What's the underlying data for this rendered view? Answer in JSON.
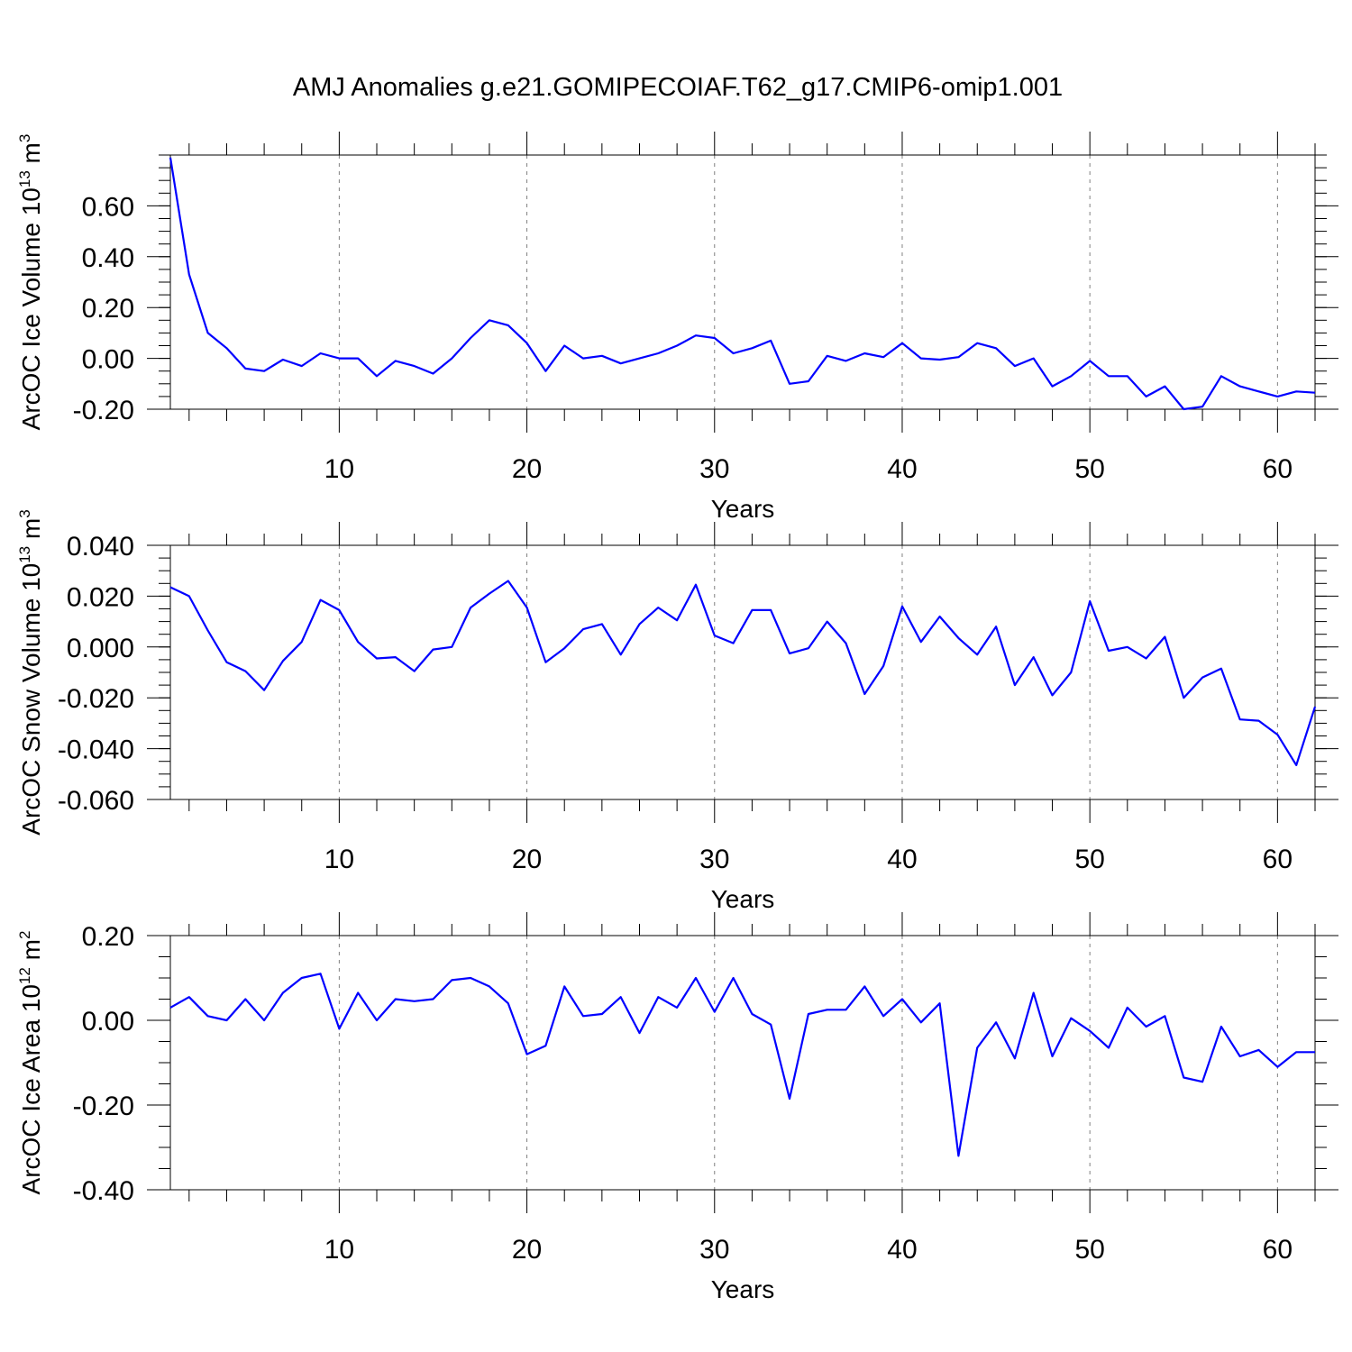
{
  "title": "AMJ Anomalies g.e21.GOMIPECOIAF.T62_g17.CMIP6-omip1.001",
  "colors": {
    "line": "#0000ff",
    "axis": "#000000",
    "grid": "#808080"
  },
  "chart_data": [
    {
      "type": "line",
      "xlabel": "Years",
      "ylabel": {
        "text": "ArcOC Ice Volume 10",
        "exp": "13",
        "unit": " m",
        "unit_exp": "3"
      },
      "xlim": [
        1,
        62
      ],
      "ylim": [
        -0.2,
        0.8
      ],
      "x_ticks": [
        10,
        20,
        30,
        40,
        50,
        60
      ],
      "y_ticks": [
        -0.2,
        0.0,
        0.2,
        0.4,
        0.6
      ],
      "y_tick_labels": [
        "-0.20",
        "0.00",
        "0.20",
        "0.40",
        "0.60"
      ],
      "grid": "vertical dashed at major x ticks",
      "series": [
        {
          "x": [
            1,
            2,
            3,
            4,
            5,
            6,
            7,
            8,
            9,
            10,
            11,
            12,
            13,
            14,
            15,
            16,
            17,
            18,
            19,
            20,
            21,
            22,
            23,
            24,
            25,
            26,
            27,
            28,
            29,
            30,
            31,
            32,
            33,
            34,
            35,
            36,
            37,
            38,
            39,
            40,
            41,
            42,
            43,
            44,
            45,
            46,
            47,
            48,
            49,
            50,
            51,
            52,
            53,
            54,
            55,
            56,
            57,
            58,
            59,
            60,
            61,
            62
          ],
          "values": [
            0.79,
            0.33,
            0.1,
            0.04,
            -0.04,
            -0.05,
            -0.005,
            -0.03,
            0.02,
            0.0,
            0.0,
            -0.07,
            -0.01,
            -0.03,
            -0.06,
            0.0,
            0.08,
            0.15,
            0.13,
            0.06,
            -0.05,
            0.05,
            0.0,
            0.01,
            -0.02,
            0.0,
            0.02,
            0.05,
            0.09,
            0.08,
            0.02,
            0.04,
            0.07,
            -0.1,
            -0.09,
            0.01,
            -0.01,
            0.02,
            0.005,
            0.06,
            0.0,
            -0.005,
            0.005,
            0.06,
            0.04,
            -0.03,
            0.0,
            -0.11,
            -0.07,
            -0.01,
            -0.07,
            -0.07,
            -0.15,
            -0.11,
            -0.2,
            -0.19,
            -0.07,
            -0.11,
            -0.13,
            -0.15,
            -0.13,
            -0.135
          ]
        }
      ]
    },
    {
      "type": "line",
      "xlabel": "Years",
      "ylabel": {
        "text": "ArcOC Snow Volume 10",
        "exp": "13",
        "unit": " m",
        "unit_exp": "3"
      },
      "xlim": [
        1,
        62
      ],
      "ylim": [
        -0.06,
        0.04
      ],
      "x_ticks": [
        10,
        20,
        30,
        40,
        50,
        60
      ],
      "y_ticks": [
        -0.06,
        -0.04,
        -0.02,
        0.0,
        0.02,
        0.04
      ],
      "y_tick_labels": [
        "-0.060",
        "-0.040",
        "-0.020",
        "0.000",
        "0.020",
        "0.040"
      ],
      "grid": "vertical dashed at major x ticks",
      "series": [
        {
          "x": [
            1,
            2,
            3,
            4,
            5,
            6,
            7,
            8,
            9,
            10,
            11,
            12,
            13,
            14,
            15,
            16,
            17,
            18,
            19,
            20,
            21,
            22,
            23,
            24,
            25,
            26,
            27,
            28,
            29,
            30,
            31,
            32,
            33,
            34,
            35,
            36,
            37,
            38,
            39,
            40,
            41,
            42,
            43,
            44,
            45,
            46,
            47,
            48,
            49,
            50,
            51,
            52,
            53,
            54,
            55,
            56,
            57,
            58,
            59,
            60,
            61,
            62
          ],
          "values": [
            0.0235,
            0.02,
            0.0065,
            -0.006,
            -0.0095,
            -0.017,
            -0.0055,
            0.002,
            0.0185,
            0.0145,
            0.002,
            -0.0045,
            -0.004,
            -0.0095,
            -0.001,
            0.0,
            0.0155,
            0.021,
            0.026,
            0.0155,
            -0.006,
            -0.0005,
            0.007,
            0.009,
            -0.003,
            0.009,
            0.0155,
            0.0105,
            0.0245,
            0.0045,
            0.0015,
            0.0145,
            0.0145,
            -0.0025,
            -0.0005,
            0.01,
            0.0015,
            -0.0185,
            -0.0075,
            0.016,
            0.002,
            0.012,
            0.0035,
            -0.003,
            0.008,
            -0.015,
            -0.004,
            -0.019,
            -0.01,
            0.018,
            -0.0015,
            0.0,
            -0.0045,
            0.004,
            -0.02,
            -0.012,
            -0.0085,
            -0.0285,
            -0.029,
            -0.0345,
            -0.0465,
            -0.0235
          ]
        }
      ]
    },
    {
      "type": "line",
      "xlabel": "Years",
      "ylabel": {
        "text": "ArcOC Ice Area 10",
        "exp": "12",
        "unit": " m",
        "unit_exp": "2"
      },
      "xlim": [
        1,
        62
      ],
      "ylim": [
        -0.4,
        0.2
      ],
      "x_ticks": [
        10,
        20,
        30,
        40,
        50,
        60
      ],
      "y_ticks": [
        -0.4,
        -0.2,
        0.0,
        0.2
      ],
      "y_tick_labels": [
        "-0.40",
        "-0.20",
        "0.00",
        "0.20"
      ],
      "grid": "vertical dashed at major x ticks",
      "series": [
        {
          "x": [
            1,
            2,
            3,
            4,
            5,
            6,
            7,
            8,
            9,
            10,
            11,
            12,
            13,
            14,
            15,
            16,
            17,
            18,
            19,
            20,
            21,
            22,
            23,
            24,
            25,
            26,
            27,
            28,
            29,
            30,
            31,
            32,
            33,
            34,
            35,
            36,
            37,
            38,
            39,
            40,
            41,
            42,
            43,
            44,
            45,
            46,
            47,
            48,
            49,
            50,
            51,
            52,
            53,
            54,
            55,
            56,
            57,
            58,
            59,
            60,
            61,
            62
          ],
          "values": [
            0.03,
            0.055,
            0.01,
            0.0,
            0.05,
            0.0,
            0.065,
            0.1,
            0.11,
            -0.02,
            0.065,
            0.0,
            0.05,
            0.045,
            0.05,
            0.095,
            0.1,
            0.08,
            0.04,
            -0.08,
            -0.06,
            0.08,
            0.01,
            0.015,
            0.055,
            -0.03,
            0.055,
            0.03,
            0.1,
            0.02,
            0.1,
            0.015,
            -0.01,
            -0.185,
            0.015,
            0.025,
            0.025,
            0.08,
            0.01,
            0.05,
            -0.005,
            0.04,
            -0.32,
            -0.065,
            -0.005,
            -0.09,
            0.065,
            -0.085,
            0.005,
            -0.025,
            -0.065,
            0.03,
            -0.015,
            0.01,
            -0.135,
            -0.145,
            -0.015,
            -0.085,
            -0.07,
            -0.11,
            -0.075,
            -0.075
          ]
        }
      ]
    }
  ]
}
